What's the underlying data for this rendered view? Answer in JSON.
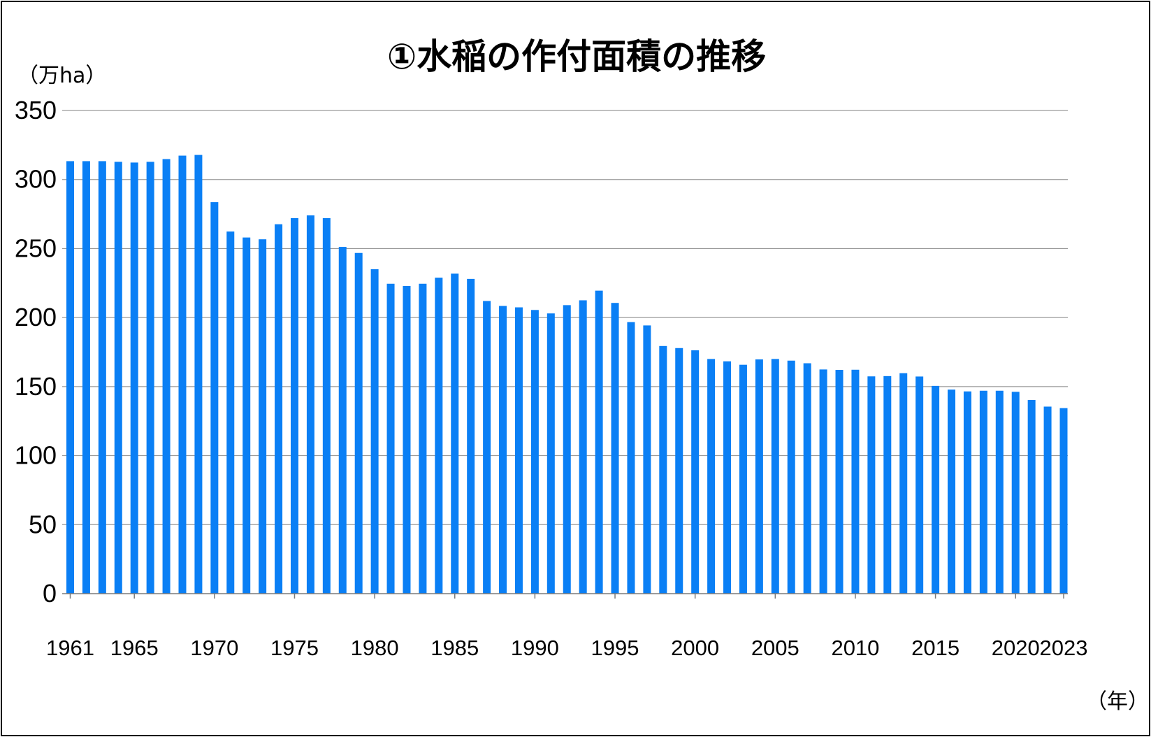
{
  "chart_data": {
    "type": "bar",
    "title": "①水稲の作付面積の推移",
    "ylabel": "（万ha）",
    "xlabel": "（年）",
    "ylim": [
      0,
      350
    ],
    "yticks": [
      0,
      50,
      100,
      150,
      200,
      250,
      300,
      350
    ],
    "grid": true,
    "bar_color": "#0A7FF5",
    "xtick_labels": [
      "1961",
      "1965",
      "1970",
      "1975",
      "1980",
      "1985",
      "1990",
      "1995",
      "2000",
      "2005",
      "2010",
      "2015",
      "2020",
      "2023"
    ],
    "categories": [
      1961,
      1962,
      1963,
      1964,
      1965,
      1966,
      1967,
      1968,
      1969,
      1970,
      1971,
      1972,
      1973,
      1974,
      1975,
      1976,
      1977,
      1978,
      1979,
      1980,
      1981,
      1982,
      1983,
      1984,
      1985,
      1986,
      1987,
      1988,
      1989,
      1990,
      1991,
      1992,
      1993,
      1994,
      1995,
      1996,
      1997,
      1998,
      1999,
      2000,
      2001,
      2002,
      2003,
      2004,
      2005,
      2006,
      2007,
      2008,
      2009,
      2010,
      2011,
      2012,
      2013,
      2014,
      2015,
      2016,
      2017,
      2018,
      2019,
      2020,
      2021,
      2022,
      2023
    ],
    "values": [
      313.3,
      313.3,
      313.3,
      312.8,
      312.3,
      312.8,
      314.8,
      317.3,
      317.8,
      283.6,
      262.3,
      258.0,
      256.7,
      267.6,
      272.0,
      274.0,
      272.0,
      251.2,
      246.8,
      235.0,
      224.5,
      222.9,
      224.5,
      228.9,
      231.8,
      228.0,
      212.0,
      208.4,
      207.4,
      205.5,
      203.0,
      209.0,
      212.5,
      219.5,
      210.6,
      196.7,
      194.3,
      179.4,
      177.9,
      176.3,
      170.0,
      168.3,
      165.8,
      169.7,
      170.0,
      168.8,
      166.9,
      162.4,
      162.1,
      162.2,
      157.4,
      157.6,
      159.7,
      157.3,
      150.5,
      147.8,
      146.5,
      147.0,
      147.0,
      146.2,
      140.3,
      135.5,
      134.4
    ]
  }
}
